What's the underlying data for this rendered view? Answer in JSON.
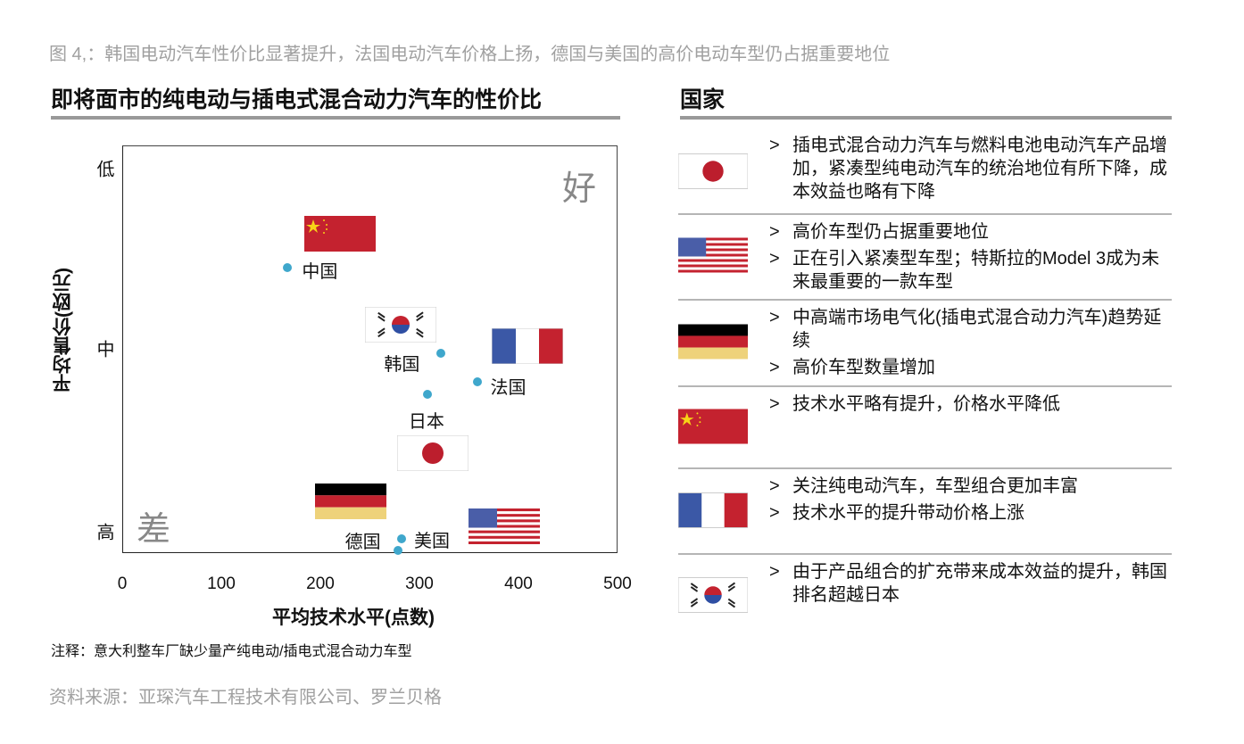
{
  "figure_title": "图 4,：韩国电动汽车性价比显著提升，法国电动汽车价格上扬，德国与美国的高价电动车型仍占据重要地位",
  "chart_data": {
    "type": "scatter",
    "title": "即将面市的纯电动与插电式混合动力汽车的性价比",
    "xlabel": "平均技术水平(点数)",
    "ylabel": "平均售价(欧元)",
    "xlim": [
      0,
      500
    ],
    "xticks": [
      "0",
      "100",
      "200",
      "300",
      "400",
      "500"
    ],
    "ylim": [
      0,
      1
    ],
    "y_axis_note": "qualitative price level, 0 = 高 (bottom), 1 = 低 (top)",
    "yticks": [
      {
        "label": "低",
        "value": 0.94
      },
      {
        "label": "中",
        "value": 0.5
      },
      {
        "label": "高",
        "value": 0.05
      }
    ],
    "corner_labels": {
      "good": "好",
      "bad": "差"
    },
    "grid": false,
    "point_color": "#3fa7cc",
    "points": [
      {
        "label": "中国",
        "flag": "china",
        "x": 167,
        "y": 0.7
      },
      {
        "label": "韩国",
        "flag": "korea",
        "x": 322,
        "y": 0.49
      },
      {
        "label": "法国",
        "flag": "france",
        "x": 359,
        "y": 0.42
      },
      {
        "label": "日本",
        "flag": "japan",
        "x": 308,
        "y": 0.39
      },
      {
        "label": "美国",
        "flag": "usa",
        "x": 282,
        "y": 0.035
      },
      {
        "label": "德国",
        "flag": "germany",
        "x": 278,
        "y": 0.007
      }
    ]
  },
  "legend": {
    "title": "国家",
    "rows": [
      {
        "flag": "japan",
        "bullets": [
          "插电式混合动力汽车与燃料电池电动汽车产品增加，紧凑型纯电动汽车的统治地位有所下降，成本效益也略有下降"
        ]
      },
      {
        "flag": "usa",
        "bullets": [
          "高价车型仍占据重要地位",
          "正在引入紧凑型车型；特斯拉的Model 3成为未来最重要的一款车型"
        ]
      },
      {
        "flag": "germany",
        "bullets": [
          "中高端市场电气化(插电式混合动力汽车)趋势延续",
          "高价车型数量增加"
        ]
      },
      {
        "flag": "china",
        "bullets": [
          "技术水平略有提升，价格水平降低"
        ]
      },
      {
        "flag": "france",
        "bullets": [
          "关注纯电动汽车，车型组合更加丰富",
          "技术水平的提升带动价格上涨"
        ]
      },
      {
        "flag": "korea",
        "bullets": [
          "由于产品组合的扩充带来成本效益的提升，韩国排名超越日本"
        ]
      }
    ],
    "bullet_marker": ">"
  },
  "note": "注释：意大利整车厂缺少量产纯电动/插电式混合动力车型",
  "source": "资料来源：亚琛汽车工程技术有限公司、罗兰贝格"
}
